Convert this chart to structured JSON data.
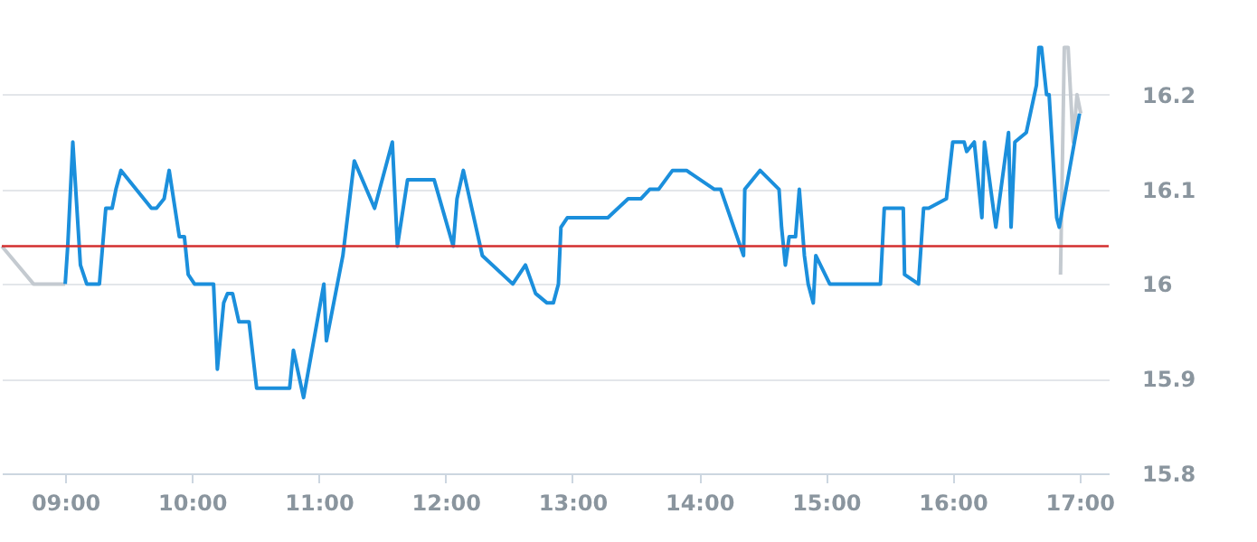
{
  "chart_data": {
    "type": "line",
    "xlim": [
      8.5,
      17.23
    ],
    "xticks": [
      {
        "value": 9,
        "label": "09:00"
      },
      {
        "value": 10,
        "label": "10:00"
      },
      {
        "value": 11,
        "label": "11:00"
      },
      {
        "value": 12,
        "label": "12:00"
      },
      {
        "value": 13,
        "label": "13:00"
      },
      {
        "value": 14,
        "label": "14:00"
      },
      {
        "value": 15,
        "label": "15:00"
      },
      {
        "value": 16,
        "label": "16:00"
      },
      {
        "value": 17,
        "label": "17:00"
      }
    ],
    "ylim": [
      15.8,
      16.3
    ],
    "yticks": [
      15.8,
      15.9,
      16,
      16.1,
      16.2
    ],
    "grid": "y",
    "marker": "none",
    "line_style": "solid",
    "ref_lines": [
      {
        "axis": "y",
        "value": 16.04,
        "color": "#d32f2f"
      }
    ],
    "series": [
      {
        "color": "#c4cad0",
        "x": [
          8.5,
          8.75,
          9.0,
          16.84,
          16.85,
          16.88,
          16.91,
          16.95,
          16.98,
          17.01
        ],
        "values": [
          16.04,
          16.0,
          16.0,
          null,
          16.01,
          16.25,
          16.25,
          16.15,
          16.2,
          16.18
        ]
      },
      {
        "color": "#1b8fdc",
        "x": [
          9.0,
          9.02,
          9.06,
          9.12,
          9.17,
          9.27,
          9.32,
          9.37,
          9.4,
          9.44,
          9.68,
          9.72,
          9.78,
          9.82,
          9.9,
          9.94,
          9.97,
          10.02,
          10.17,
          10.2,
          10.25,
          10.28,
          10.32,
          10.37,
          10.45,
          10.51,
          10.77,
          10.8,
          10.88,
          11.04,
          11.06,
          11.19,
          11.28,
          11.44,
          11.58,
          11.62,
          11.7,
          11.91,
          12.06,
          12.09,
          12.14,
          12.29,
          12.53,
          12.63,
          12.71,
          12.8,
          12.85,
          12.89,
          12.91,
          12.96,
          13.28,
          13.44,
          13.54,
          13.61,
          13.68,
          13.79,
          13.9,
          14.12,
          14.17,
          14.35,
          14.36,
          14.48,
          14.63,
          14.65,
          14.68,
          14.71,
          14.76,
          14.79,
          14.83,
          14.86,
          14.9,
          14.92,
          15.03,
          15.43,
          15.46,
          15.61,
          15.62,
          15.73,
          15.77,
          15.81,
          15.95,
          16.0,
          16.09,
          16.11,
          16.17,
          16.23,
          16.25,
          16.34,
          16.44,
          16.46,
          16.49,
          16.58,
          16.66,
          16.68,
          16.7,
          16.74,
          16.76,
          16.82,
          16.84,
          17.0
        ],
        "values": [
          16.0,
          16.04,
          16.15,
          16.02,
          16.0,
          16.0,
          16.08,
          16.08,
          16.1,
          16.12,
          16.08,
          16.08,
          16.09,
          16.12,
          16.05,
          16.05,
          16.01,
          16.0,
          16.0,
          15.91,
          15.98,
          15.99,
          15.99,
          15.96,
          15.96,
          15.89,
          15.89,
          15.93,
          15.88,
          16.0,
          15.94,
          16.03,
          16.13,
          16.08,
          16.15,
          16.04,
          16.11,
          16.11,
          16.04,
          16.09,
          16.12,
          16.03,
          16.0,
          16.02,
          15.99,
          15.98,
          15.98,
          16.0,
          16.06,
          16.07,
          16.07,
          16.09,
          16.09,
          16.1,
          16.1,
          16.12,
          16.12,
          16.1,
          16.1,
          16.03,
          16.1,
          16.12,
          16.1,
          16.06,
          16.02,
          16.05,
          16.05,
          16.1,
          16.03,
          16.0,
          15.98,
          16.03,
          16.0,
          16.0,
          16.08,
          16.08,
          16.01,
          16.0,
          16.08,
          16.08,
          16.09,
          16.15,
          16.15,
          16.14,
          16.15,
          16.07,
          16.15,
          16.06,
          16.16,
          16.06,
          16.15,
          16.16,
          16.21,
          16.25,
          16.25,
          16.2,
          16.2,
          16.07,
          16.06,
          16.18
        ]
      }
    ]
  }
}
